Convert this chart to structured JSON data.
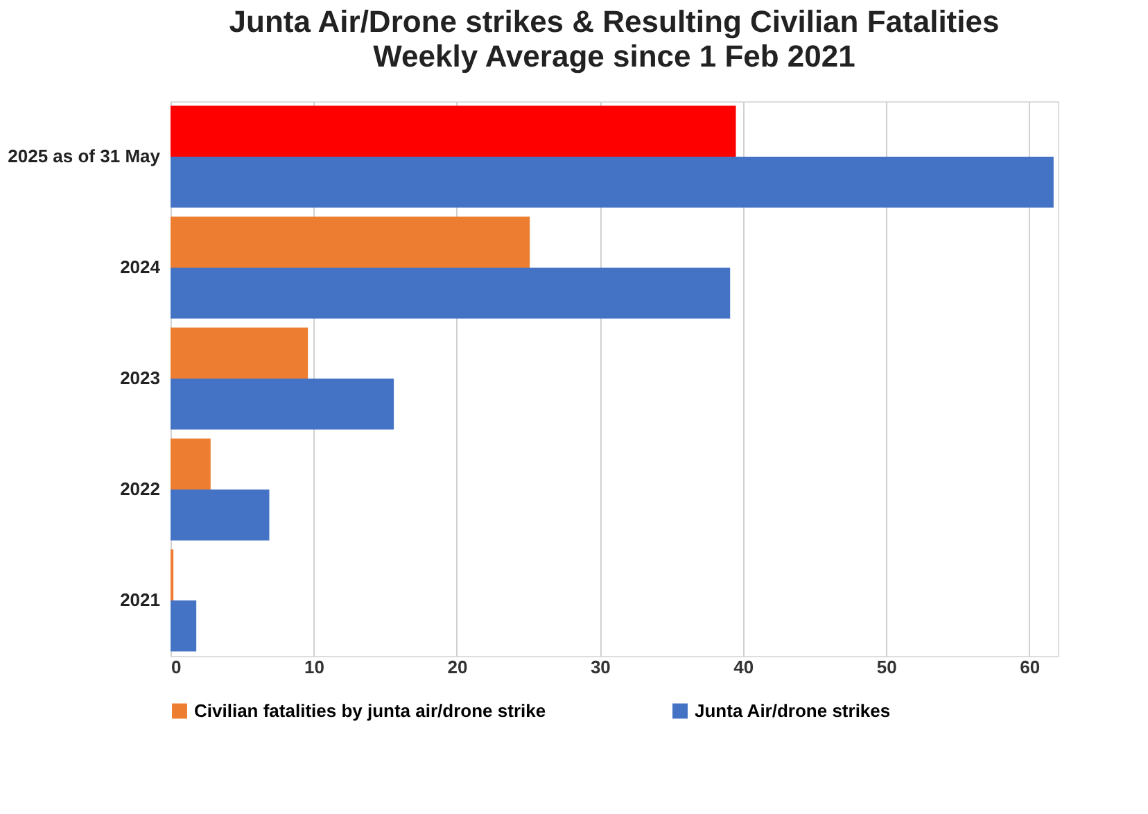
{
  "chart_data": {
    "type": "bar",
    "orientation": "horizontal",
    "title": "Junta Air/Drone strikes & Resulting Civilian Fatalities",
    "subtitle": "Weekly Average since 1 Feb 2021",
    "categories": [
      "2025 as of 31 May",
      "2024",
      "2023",
      "2022",
      "2021"
    ],
    "series": [
      {
        "name": "Civilian fatalities by junta air/drone strike",
        "color": "#ed7d31",
        "colors": [
          "#ff0000",
          "#ed7d31",
          "#ed7d31",
          "#ed7d31",
          "#ed7d31"
        ],
        "values": [
          39.5,
          25.1,
          9.6,
          2.8,
          0.2
        ]
      },
      {
        "name": "Junta Air/drone strikes",
        "color": "#4472c4",
        "values": [
          61.7,
          39.1,
          15.6,
          6.9,
          1.8
        ]
      }
    ],
    "xlim": [
      0,
      62
    ],
    "xticks": [
      0,
      10,
      20,
      30,
      40,
      50,
      60
    ],
    "grid": "x",
    "legend": "bottom"
  }
}
